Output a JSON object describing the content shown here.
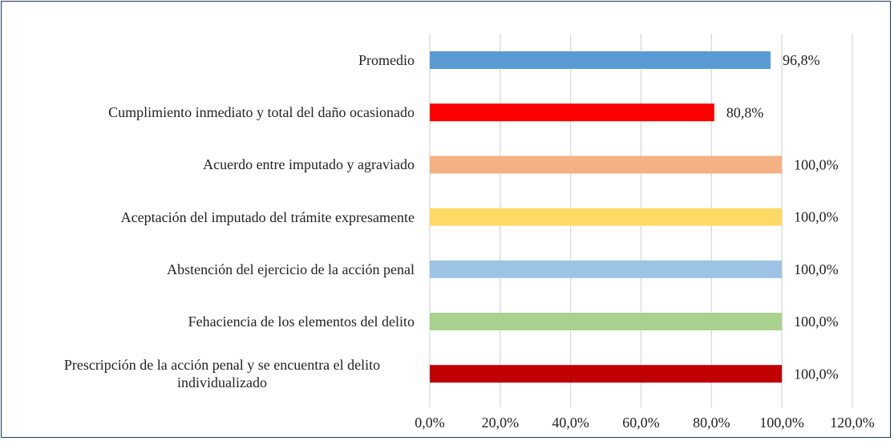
{
  "chart_data": {
    "type": "bar",
    "orientation": "horizontal",
    "categories": [
      "Promedio",
      "Cumplimiento inmediato y total del daño ocasionado",
      "Acuerdo entre imputado y agraviado",
      "Aceptación del imputado del trámite expresamente",
      "Abstención del ejercicio de la acción penal",
      "Fehaciencia de los elementos del delito",
      "Prescripción de la acción penal y se encuentra el delito individualizado"
    ],
    "values": [
      96.8,
      80.8,
      100,
      100,
      100,
      100,
      100
    ],
    "value_labels": [
      "96,8%",
      "80,8%",
      "100,0%",
      "100,0%",
      "100,0%",
      "100,0%",
      "100,0%"
    ],
    "colors": [
      "#5b9bd5",
      "#ff0000",
      "#f4b183",
      "#ffd966",
      "#9dc3e6",
      "#a9d18e",
      "#c00000"
    ],
    "xlim": [
      0,
      120
    ],
    "xticks": [
      {
        "value": 0,
        "label": "0,0%"
      },
      {
        "value": 20,
        "label": "20,0%"
      },
      {
        "value": 40,
        "label": "40,0%"
      },
      {
        "value": 60,
        "label": "60,0%"
      },
      {
        "value": 80,
        "label": "80,0%"
      },
      {
        "value": 100,
        "label": "100,0%"
      },
      {
        "value": 120,
        "label": "120,0%"
      }
    ],
    "grid": true
  }
}
